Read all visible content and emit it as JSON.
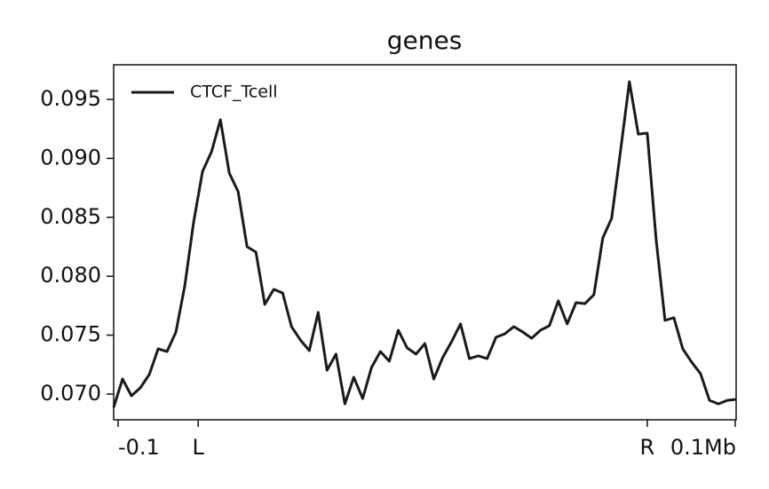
{
  "chart_data": {
    "type": "line",
    "title": "genes",
    "x": [
      0,
      1,
      2,
      3,
      4,
      5,
      6,
      7,
      8,
      9,
      10,
      11,
      12,
      13,
      14,
      15,
      16,
      17,
      18,
      19,
      20,
      21,
      22,
      23,
      24,
      25,
      26,
      27,
      28,
      29,
      30,
      31,
      32,
      33,
      34,
      35,
      36,
      37,
      38,
      39,
      40,
      41,
      42,
      43,
      44,
      45,
      46,
      47,
      48,
      49,
      50,
      51,
      52,
      53,
      54,
      55,
      56,
      57,
      58,
      59,
      60,
      61,
      62,
      63,
      64,
      65,
      66,
      67,
      68,
      69,
      70
    ],
    "series": [
      {
        "name": "CTCF_Tcell",
        "color": "#1a1a1a",
        "values": [
          0.06887,
          0.07128,
          0.06985,
          0.07053,
          0.07166,
          0.07384,
          0.07361,
          0.07527,
          0.07919,
          0.08461,
          0.0889,
          0.09056,
          0.09327,
          0.08875,
          0.08717,
          0.0825,
          0.08205,
          0.07761,
          0.07889,
          0.07858,
          0.07572,
          0.07459,
          0.07369,
          0.07693,
          0.07203,
          0.07339,
          0.06917,
          0.07143,
          0.06962,
          0.07226,
          0.07361,
          0.07279,
          0.07542,
          0.07392,
          0.07339,
          0.07429,
          0.07128,
          0.07309,
          0.07444,
          0.07595,
          0.07301,
          0.07324,
          0.07301,
          0.07482,
          0.07512,
          0.07572,
          0.07527,
          0.07474,
          0.07542,
          0.0758,
          0.07791,
          0.07595,
          0.07776,
          0.07768,
          0.07843,
          0.08325,
          0.08491,
          0.09063,
          0.09651,
          0.09206,
          0.09214,
          0.0831,
          0.07625,
          0.07648,
          0.07384,
          0.07271,
          0.07173,
          0.06947,
          0.06917,
          0.06947,
          0.06955
        ]
      }
    ],
    "xlim": [
      0,
      70
    ],
    "xticks": [
      {
        "value": 0.5,
        "label": "-0.1"
      },
      {
        "value": 9.5,
        "label": "L"
      },
      {
        "value": 60,
        "label": "R"
      },
      {
        "value": 69.9,
        "label": "0.1Mb"
      }
    ],
    "ylim": [
      0.06782,
      0.09794
    ],
    "yticks": [
      {
        "value": 0.07,
        "label": "0.070"
      },
      0.075,
      {
        "value": 0.08,
        "label": "0.080"
      },
      0.085,
      {
        "value": 0.09,
        "label": "0.090"
      },
      0.095
    ],
    "legend": "upper left"
  }
}
